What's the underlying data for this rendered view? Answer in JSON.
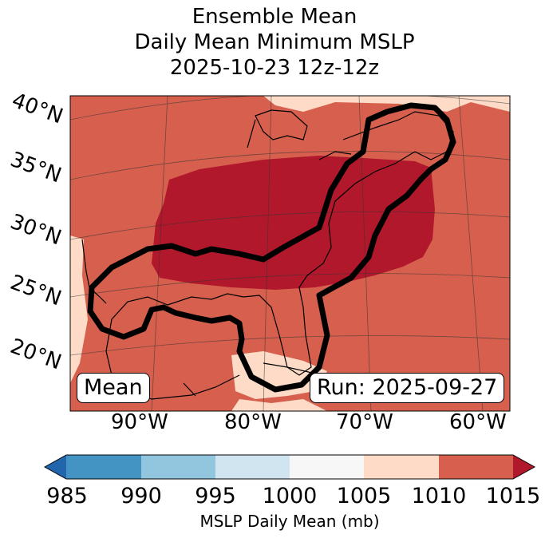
{
  "title_lines": [
    "Ensemble Mean",
    "Daily Mean Minimum MSLP",
    "2025-10-23 12z-12z"
  ],
  "lat_labels": [
    "40°N",
    "35°N",
    "30°N",
    "25°N",
    "20°N"
  ],
  "lon_labels": [
    "90°W",
    "80°W",
    "70°W",
    "60°W"
  ],
  "badge_left": "Mean",
  "badge_right": "Run: 2025-09-27",
  "colorbar": {
    "label": "MSLP Daily Mean (mb)",
    "ticks": [
      "985",
      "990",
      "995",
      "1000",
      "1005",
      "1010",
      "1015"
    ],
    "bins": [
      {
        "range": "<985",
        "color": "#2166ac"
      },
      {
        "range": "985-990",
        "color": "#4393c3"
      },
      {
        "range": "990-995",
        "color": "#92c5de"
      },
      {
        "range": "995-1000",
        "color": "#d1e5f0"
      },
      {
        "range": "1000-1005",
        "color": "#f7f7f7"
      },
      {
        "range": "1005-1010",
        "color": "#fddbc7"
      },
      {
        "range": "1010-1015",
        "color": "#d6604d"
      },
      {
        "range": ">1015",
        "color": "#b2182b"
      }
    ]
  }
}
